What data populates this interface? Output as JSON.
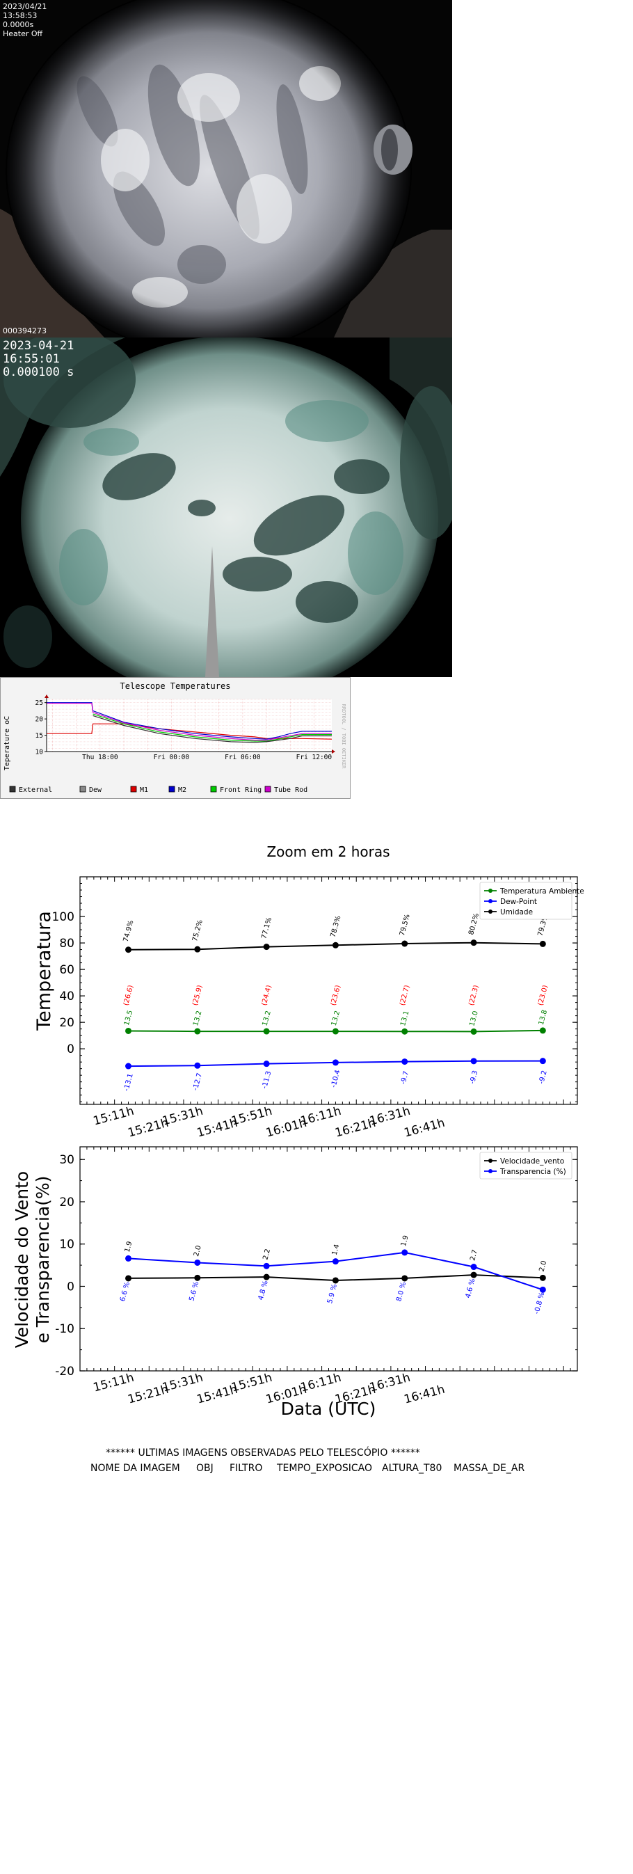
{
  "camera1": {
    "date": "2023/04/21",
    "time": "13:58:53",
    "exposure": "0.0000s",
    "heater": "Heater Off",
    "frame_id": "000394273"
  },
  "camera2": {
    "date": "2023-04-21",
    "time": "16:55:01",
    "exposure": "0.000100 s"
  },
  "telescope_chart": {
    "chart_data": {
      "type": "line",
      "title": "Telescope Temperatures",
      "ylabel": "Teperature oC",
      "side_label": "RRDTOOL / TOBI OETIKER",
      "yticks": [
        10,
        15,
        20,
        25
      ],
      "ylim": [
        10,
        26
      ],
      "xticks": [
        "Thu 18:00",
        "Fri 00:00",
        "Fri 06:00",
        "Fri 12:00"
      ],
      "x_hours": [
        0,
        2,
        4,
        6,
        8,
        10,
        12,
        14,
        16,
        18,
        20,
        22,
        24
      ],
      "xtick_hours": [
        4,
        10,
        16,
        22
      ],
      "xlim": [
        -0.5,
        23.5
      ],
      "legend": [
        "External",
        "Dew",
        "M1",
        "M2",
        "Front Ring",
        "Tube Rod"
      ],
      "colors": {
        "External": "#333333",
        "Dew": "#888888",
        "M1": "#dd0000",
        "M2": "#0000cc",
        "Front Ring": "#00cc00",
        "Tube Rod": "#cc00cc"
      },
      "series": [
        {
          "name": "M1",
          "x": [
            -0.5,
            3.3,
            3.4,
            6,
            9,
            12,
            15,
            17,
            18,
            21,
            23.5
          ],
          "y": [
            15.5,
            15.5,
            18.5,
            18.5,
            17,
            16,
            15,
            14.5,
            14,
            14,
            13.8
          ]
        },
        {
          "name": "M2",
          "x": [
            -0.5,
            3.3,
            3.4,
            6,
            9,
            12,
            15,
            17,
            18,
            19,
            20,
            21,
            23.5
          ],
          "y": [
            25,
            25,
            22.5,
            19,
            17,
            15.5,
            14.5,
            14,
            13.8,
            14.5,
            15.5,
            16.2,
            16.2
          ]
        },
        {
          "name": "Front Ring",
          "x": [
            3.4,
            6,
            9,
            12,
            15,
            17,
            18,
            19,
            20,
            21,
            23.5
          ],
          "y": [
            21.5,
            18.5,
            16,
            14.5,
            13.5,
            13.2,
            13.2,
            13.8,
            14.5,
            15.2,
            15.2
          ]
        },
        {
          "name": "External",
          "x": [
            3.4,
            6,
            9,
            12,
            15,
            17,
            18,
            19,
            20,
            21,
            23.5
          ],
          "y": [
            21,
            18,
            15.5,
            14,
            13,
            12.8,
            13,
            13.5,
            14,
            14.8,
            14.8
          ]
        },
        {
          "name": "Tube Rod",
          "x": [
            -0.5,
            3.3,
            3.4,
            6,
            9,
            12,
            15,
            17,
            18,
            21,
            23.5
          ],
          "y": [
            24.8,
            24.8,
            22,
            18.8,
            16.5,
            15,
            14,
            13.5,
            13.5,
            15.5,
            15.5
          ]
        }
      ]
    }
  },
  "zoom_chart": {
    "chart_data": {
      "type": "line",
      "title": "Zoom em 2 horas",
      "ylabel": "Temperatura",
      "ylim": [
        -42,
        130
      ],
      "yticks": [
        0,
        20,
        40,
        60,
        80,
        100
      ],
      "categories": [
        "15:11h",
        "15:21h",
        "15:31h",
        "15:41h",
        "15:51h",
        "16:01h",
        "16:11h",
        "16:21h",
        "16:31h",
        "16:41h"
      ],
      "x": [
        2,
        12,
        22,
        32,
        42,
        52,
        62
      ],
      "xlim": [
        -5,
        67
      ],
      "legend_position": "top-right",
      "series": [
        {
          "name": "Temperatura Ambiente",
          "color": "#008000",
          "values": [
            13.5,
            13.2,
            13.2,
            13.2,
            13.1,
            13.0,
            13.8
          ],
          "labels": [
            "13.5",
            "13.2",
            "13.2",
            "13.2",
            "13.1",
            "13.0",
            "13.8"
          ]
        },
        {
          "name": "Dew-Point",
          "color": "#0000ff",
          "values": [
            -13.1,
            -12.7,
            -11.3,
            -10.4,
            -9.7,
            -9.3,
            -9.2
          ],
          "labels": [
            "-13.1",
            "-12.7",
            "-11.3",
            "-10.4",
            "-9.7",
            "-9.3",
            "-9.2"
          ]
        },
        {
          "name": "Umidade",
          "color": "#000000",
          "values": [
            74.9,
            75.2,
            77.1,
            78.3,
            79.5,
            80.2,
            79.3
          ],
          "labels": [
            "74.9%",
            "75.2%",
            "77.1%",
            "78.3%",
            "79.5%",
            "80.2%",
            "79.3%"
          ]
        }
      ],
      "annotations": {
        "color": "#ff0000",
        "y_position": 40,
        "labels": [
          "(26.6)",
          "(25.9)",
          "(24.4)",
          "(23.6)",
          "(22.7)",
          "(22.3)",
          "(23.0)"
        ]
      }
    }
  },
  "wind_chart": {
    "chart_data": {
      "type": "line",
      "xlabel": "Data (UTC)",
      "ylabel_line1": "Velocidade do Vento",
      "ylabel_line2": "e Transparencia(%)",
      "ylim": [
        -20,
        33
      ],
      "yticks": [
        -20,
        -10,
        0,
        10,
        20,
        30
      ],
      "categories": [
        "15:11h",
        "15:21h",
        "15:31h",
        "15:41h",
        "15:51h",
        "16:01h",
        "16:11h",
        "16:21h",
        "16:31h",
        "16:41h"
      ],
      "x": [
        2,
        12,
        22,
        32,
        42,
        52,
        62
      ],
      "xlim": [
        -5,
        67
      ],
      "legend_position": "top-right",
      "series": [
        {
          "name": "Velocidade_vento",
          "color": "#000000",
          "values": [
            1.9,
            2.0,
            2.2,
            1.4,
            1.9,
            2.7,
            2.0
          ],
          "labels": [
            "1.9",
            "2.0",
            "2.2",
            "1.4",
            "1.9",
            "2.7",
            "2.0"
          ]
        },
        {
          "name": "Transparencia (%)",
          "color": "#0000ff",
          "values": [
            6.6,
            5.6,
            4.8,
            5.9,
            8.0,
            4.6,
            -0.8
          ],
          "labels": [
            "6.6 %",
            "5.6 %",
            "4.8 %",
            "5.9 %",
            "8.0 %",
            "4.6 %",
            "-0.8 %"
          ]
        }
      ]
    }
  },
  "last_images": {
    "header": "****** ULTIMAS IMAGENS OBSERVADAS PELO TELESCÓPIO ******",
    "columns": [
      "NOME DA IMAGEM",
      "OBJ",
      "FILTRO",
      "TEMPO_EXPOSICAO",
      "ALTURA_T80",
      "MASSA_DE_AR"
    ]
  }
}
